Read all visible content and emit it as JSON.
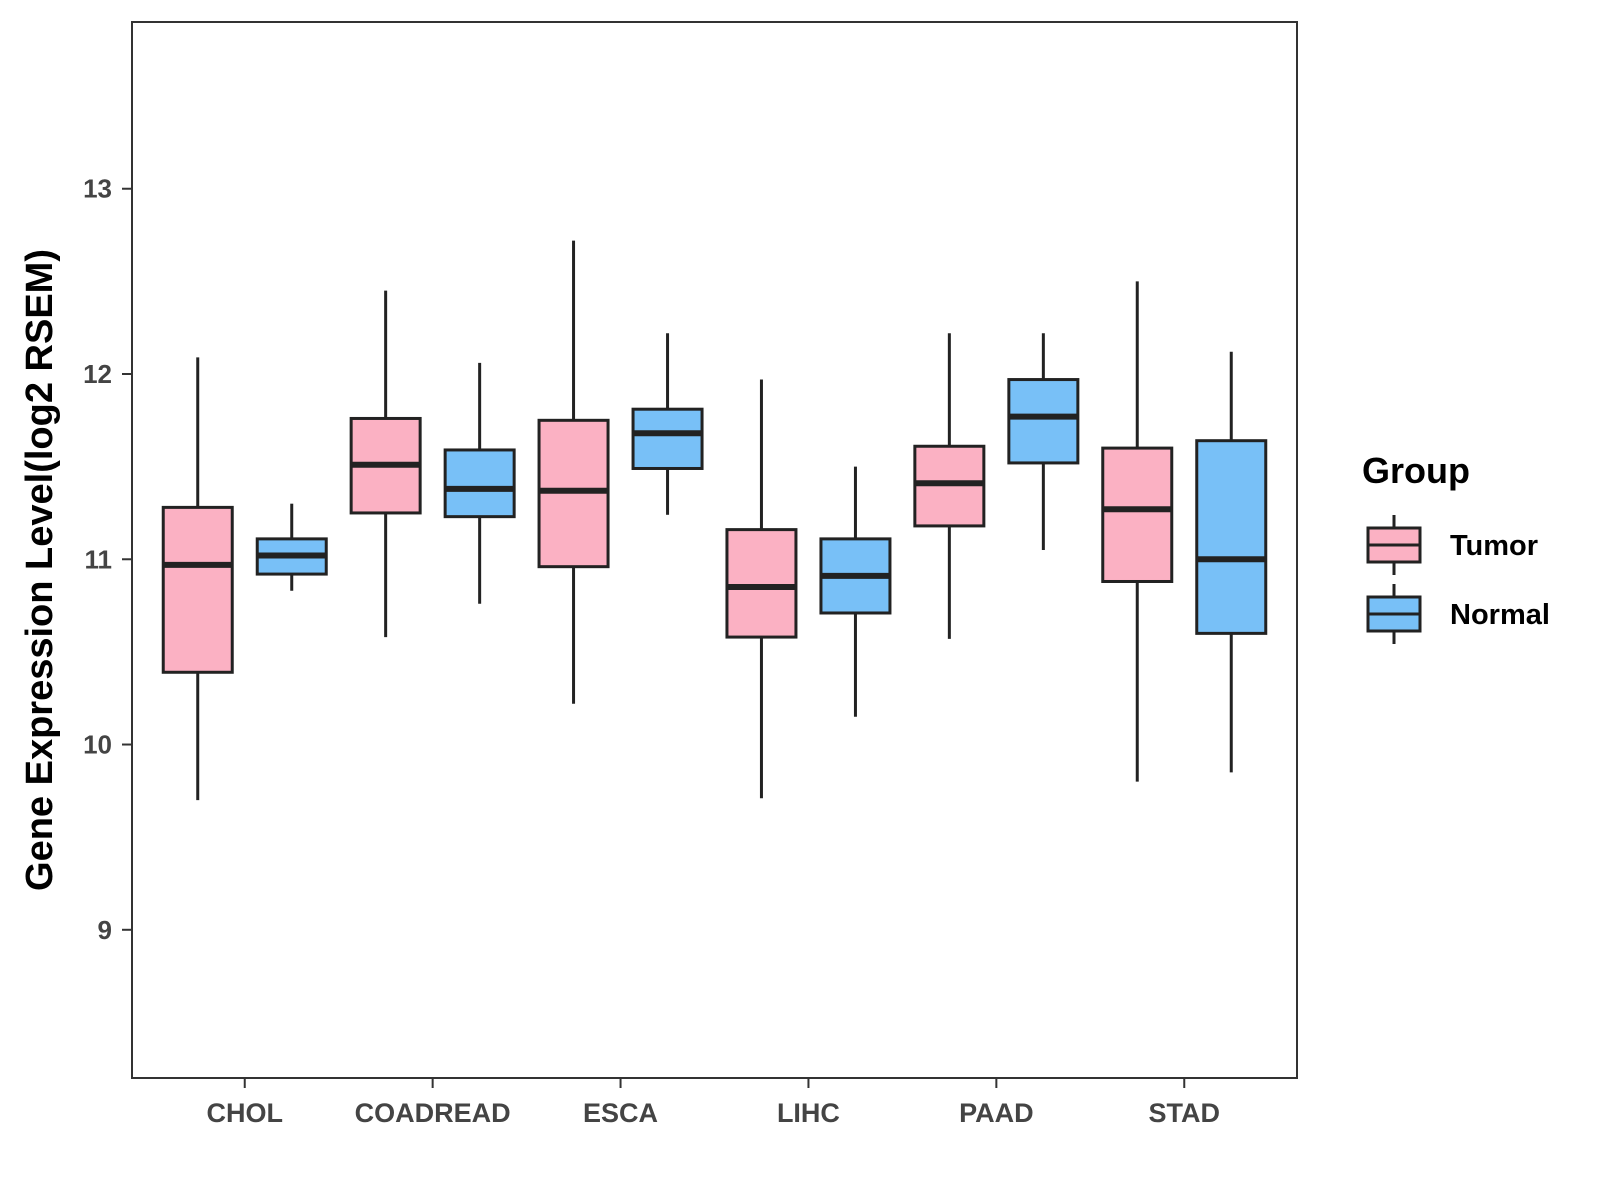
{
  "chart_data": {
    "type": "boxplot",
    "title": "",
    "xlabel": "",
    "ylabel": "Gene Expression Level(log2 RSEM)",
    "ylim": [
      8.2,
      13.9
    ],
    "yticks": [
      9,
      10,
      11,
      12,
      13
    ],
    "ytick_labels": [
      "9",
      "10",
      "11",
      "12",
      "13"
    ],
    "grid": false,
    "legend_position": "right",
    "legend_title": "Group",
    "categories": [
      "CHOL",
      "COADREAD",
      "ESCA",
      "LIHC",
      "PAAD",
      "STAD"
    ],
    "series": [
      {
        "name": "Tumor",
        "color": "#FBB1C3",
        "boxes": [
          {
            "min": 9.7,
            "q1": 10.39,
            "median": 10.97,
            "q3": 11.28,
            "max": 12.09
          },
          {
            "min": 10.58,
            "q1": 11.25,
            "median": 11.51,
            "q3": 11.76,
            "max": 12.45
          },
          {
            "min": 10.22,
            "q1": 10.96,
            "median": 11.37,
            "q3": 11.75,
            "max": 12.72
          },
          {
            "min": 9.71,
            "q1": 10.58,
            "median": 10.85,
            "q3": 11.16,
            "max": 11.97
          },
          {
            "min": 10.57,
            "q1": 11.18,
            "median": 11.41,
            "q3": 11.61,
            "max": 12.22
          },
          {
            "min": 9.8,
            "q1": 10.88,
            "median": 11.27,
            "q3": 11.6,
            "max": 12.5
          }
        ]
      },
      {
        "name": "Normal",
        "color": "#78C0F7",
        "boxes": [
          {
            "min": 10.83,
            "q1": 10.92,
            "median": 11.02,
            "q3": 11.11,
            "max": 11.3
          },
          {
            "min": 10.76,
            "q1": 11.23,
            "median": 11.38,
            "q3": 11.59,
            "max": 12.06
          },
          {
            "min": 11.24,
            "q1": 11.49,
            "median": 11.68,
            "q3": 11.81,
            "max": 12.22
          },
          {
            "min": 10.15,
            "q1": 10.71,
            "median": 10.91,
            "q3": 11.11,
            "max": 11.5
          },
          {
            "min": 11.05,
            "q1": 11.52,
            "median": 11.77,
            "q3": 11.97,
            "max": 12.22
          },
          {
            "min": 9.85,
            "q1": 10.6,
            "median": 11.0,
            "q3": 11.64,
            "max": 12.12
          }
        ]
      }
    ]
  }
}
